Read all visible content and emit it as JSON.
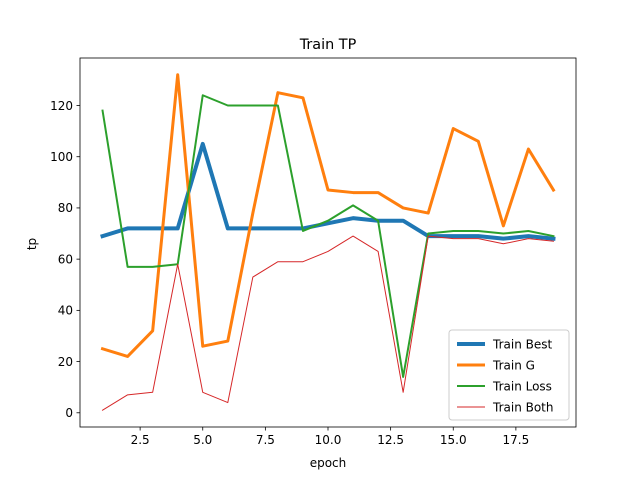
{
  "chart_data": {
    "type": "line",
    "title": "Train TP",
    "xlabel": "epoch",
    "ylabel": "tp",
    "xlim": [
      0.1,
      19.9
    ],
    "ylim": [
      -5.55,
      138.55
    ],
    "xticks": [
      2.5,
      5.0,
      7.5,
      10.0,
      12.5,
      15.0,
      17.5
    ],
    "xtick_labels": [
      "2.5",
      "5.0",
      "7.5",
      "10.0",
      "12.5",
      "15.0",
      "17.5"
    ],
    "yticks": [
      0,
      20,
      40,
      60,
      80,
      100,
      120
    ],
    "ytick_labels": [
      "0",
      "20",
      "40",
      "60",
      "80",
      "100",
      "120"
    ],
    "grid": false,
    "legend_position": "lower-right",
    "x": [
      1,
      2,
      3,
      4,
      5,
      6,
      7,
      8,
      9,
      10,
      11,
      12,
      13,
      14,
      15,
      16,
      17,
      18,
      19
    ],
    "series": [
      {
        "name": "Train Best",
        "color": "#1f77b4",
        "width": 4,
        "values": [
          69,
          72,
          72,
          72,
          105,
          72,
          72,
          72,
          72,
          74,
          76,
          75,
          75,
          69,
          69,
          69,
          68,
          69,
          68
        ]
      },
      {
        "name": "Train G",
        "color": "#ff7f0e",
        "width": 3,
        "values": [
          25,
          22,
          32,
          132,
          26,
          28,
          78,
          125,
          123,
          87,
          86,
          86,
          80,
          78,
          111,
          106,
          73,
          103,
          87
        ]
      },
      {
        "name": "Train Loss",
        "color": "#2ca02c",
        "width": 2,
        "values": [
          118,
          57,
          57,
          58,
          124,
          120,
          120,
          120,
          71,
          75,
          81,
          75,
          14,
          70,
          71,
          71,
          70,
          71,
          69
        ]
      },
      {
        "name": "Train Both",
        "color": "#d62728",
        "width": 1,
        "values": [
          1,
          7,
          8,
          58,
          8,
          4,
          53,
          59,
          59,
          63,
          69,
          63,
          8,
          69,
          68,
          68,
          66,
          68,
          67
        ]
      }
    ]
  }
}
